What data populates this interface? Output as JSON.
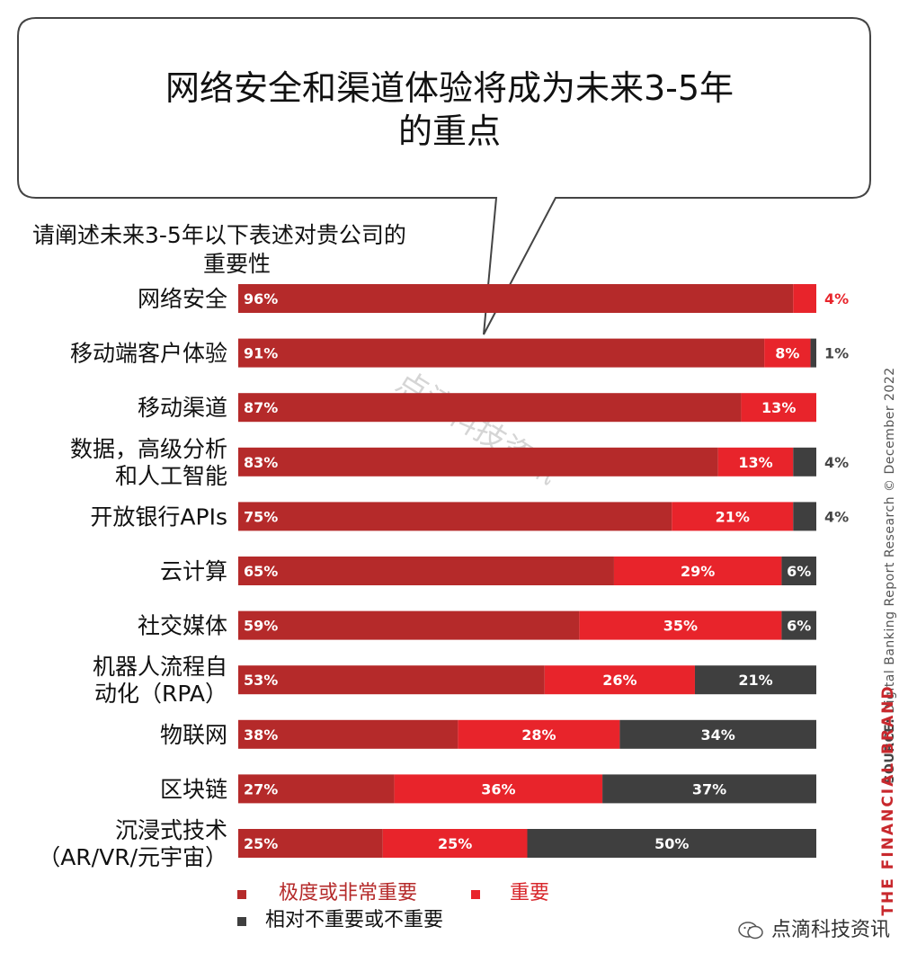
{
  "headline": [
    "网络安全和渠道体验将成为未来3-5年",
    "的重点"
  ],
  "question": [
    "请阐述未来3-5年以下表述对贵公司的",
    "重要性"
  ],
  "source_label": "SOURCE:",
  "source_text": "Digital Banking Report Research",
  "copyright": "© December 2022",
  "brand": "THE FINANCIAL BRAND",
  "watermark_diag": "点滴科技资讯",
  "watermark_corner": "点滴科技资讯",
  "colors": {
    "very_important": "#b52a2a",
    "important": "#e8242b",
    "not_important": "#3f3f3f"
  },
  "chart_data": {
    "type": "bar",
    "orientation": "horizontal",
    "stacked": true,
    "percent": true,
    "categories": [
      [
        "网络安全"
      ],
      [
        "移动端客户体验"
      ],
      [
        "移动渠道"
      ],
      [
        "数据，高级分析",
        "和人工智能"
      ],
      [
        "开放银行APIs"
      ],
      [
        "云计算"
      ],
      [
        "社交媒体"
      ],
      [
        "机器人流程自",
        "动化（RPA）"
      ],
      [
        "物联网"
      ],
      [
        "区块链"
      ],
      [
        "沉浸式技术",
        "（AR/VR/元宇宙）"
      ]
    ],
    "series": [
      {
        "name": "极度或非常重要",
        "values": [
          96,
          91,
          87,
          83,
          75,
          65,
          59,
          53,
          38,
          27,
          25
        ]
      },
      {
        "name": "重要",
        "values": [
          4,
          8,
          13,
          13,
          21,
          29,
          35,
          26,
          28,
          36,
          25
        ]
      },
      {
        "name": "相对不重要或不重要",
        "values": [
          0,
          1,
          0,
          4,
          4,
          6,
          6,
          21,
          34,
          37,
          50
        ]
      }
    ],
    "legend": [
      "极度或非常重要",
      "重要",
      "相对不重要或不重要"
    ],
    "legend_position": "bottom-left",
    "xlim": [
      0,
      100
    ]
  }
}
